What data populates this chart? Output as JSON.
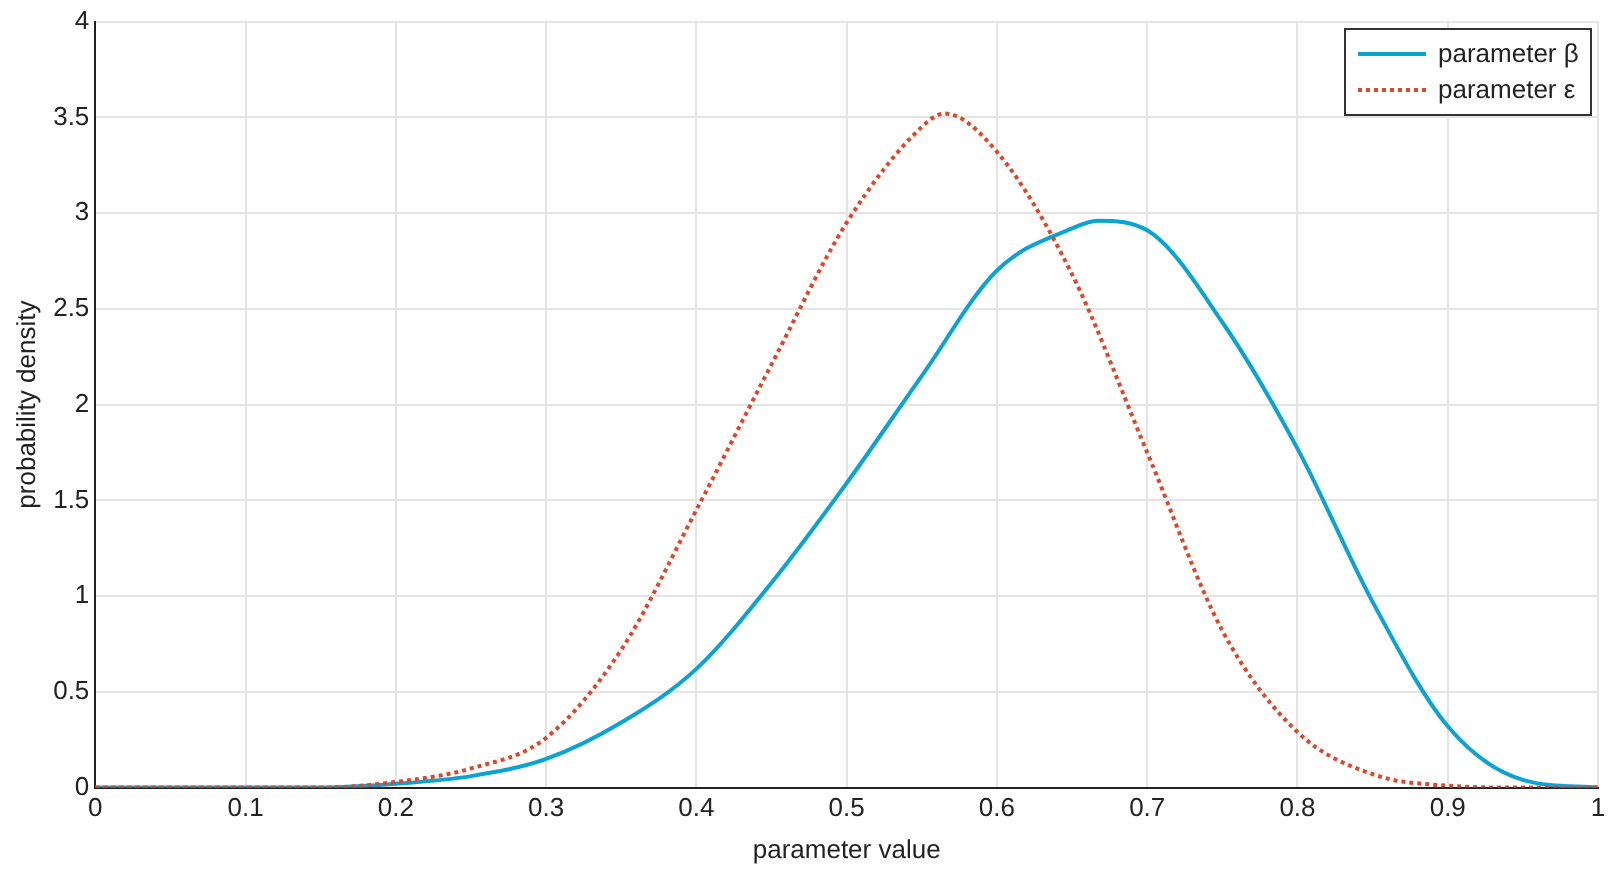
{
  "chart_data": {
    "type": "line",
    "xlabel": "parameter value",
    "ylabel": "probability density",
    "xlim": [
      0,
      1
    ],
    "xticks": [
      0,
      0.1,
      0.2,
      0.3,
      0.4,
      0.5,
      0.6,
      0.7,
      0.8,
      0.9,
      1
    ],
    "ylim": [
      0,
      4
    ],
    "yticks": [
      0,
      0.5,
      1,
      1.5,
      2,
      2.5,
      3,
      3.5,
      4
    ],
    "grid": true,
    "legend": "top right",
    "marker": "none",
    "series": [
      {
        "name": "parameter β",
        "color": "#0aa3d6",
        "line_style": "solid",
        "x": [
          0,
          0.05,
          0.1,
          0.15,
          0.2,
          0.25,
          0.3,
          0.35,
          0.4,
          0.45,
          0.5,
          0.55,
          0.6,
          0.65,
          0.667,
          0.7,
          0.75,
          0.8,
          0.85,
          0.9,
          0.95,
          1
        ],
        "values": [
          0,
          0,
          0,
          0,
          0.02,
          0.06,
          0.15,
          0.34,
          0.62,
          1.07,
          1.59,
          2.15,
          2.7,
          2.92,
          2.96,
          2.91,
          2.43,
          1.77,
          0.97,
          0.32,
          0.04,
          0
        ]
      },
      {
        "name": "parameter ε",
        "color": "#e0462a",
        "line_style": "dotted",
        "x": [
          0,
          0.05,
          0.1,
          0.15,
          0.2,
          0.25,
          0.3,
          0.35,
          0.4,
          0.45,
          0.5,
          0.55,
          0.565,
          0.6,
          0.65,
          0.7,
          0.75,
          0.8,
          0.85,
          0.9,
          0.95,
          1
        ],
        "values": [
          0,
          0,
          0,
          0,
          0.03,
          0.1,
          0.26,
          0.72,
          1.45,
          2.21,
          2.95,
          3.45,
          3.52,
          3.32,
          2.68,
          1.75,
          0.82,
          0.29,
          0.07,
          0.01,
          0,
          0
        ]
      }
    ]
  }
}
